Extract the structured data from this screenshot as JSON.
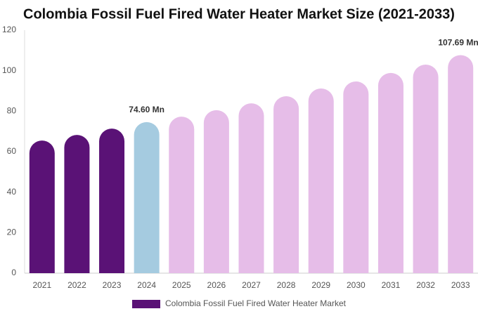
{
  "chart_data": {
    "type": "bar",
    "title": "Colombia Fossil Fuel Fired Water Heater Market Size (2021-2033)",
    "categories": [
      "2021",
      "2022",
      "2023",
      "2024",
      "2025",
      "2026",
      "2027",
      "2028",
      "2029",
      "2030",
      "2031",
      "2032",
      "2033"
    ],
    "series": [
      {
        "name": "Colombia Fossil Fuel Fired Water Heater Market",
        "color": "#5a1276",
        "colors": [
          "#5a1276",
          "#5a1276",
          "#5a1276",
          "#a5cbe0",
          "#e6bde8",
          "#e6bde8",
          "#e6bde8",
          "#e6bde8",
          "#e6bde8",
          "#e6bde8",
          "#e6bde8",
          "#e6bde8",
          "#e6bde8"
        ],
        "values": [
          65.5,
          68.3,
          71.4,
          74.6,
          77.3,
          80.5,
          83.9,
          87.4,
          91.2,
          94.7,
          98.9,
          103,
          107.69
        ],
        "value_labels": [
          null,
          null,
          null,
          "74.60 Mn",
          null,
          null,
          null,
          null,
          null,
          null,
          null,
          null,
          "107.69 Mn"
        ]
      }
    ],
    "ylim": [
      0,
      120
    ],
    "yticks": [
      0,
      20,
      40,
      60,
      80,
      100,
      120
    ],
    "grid": false
  }
}
